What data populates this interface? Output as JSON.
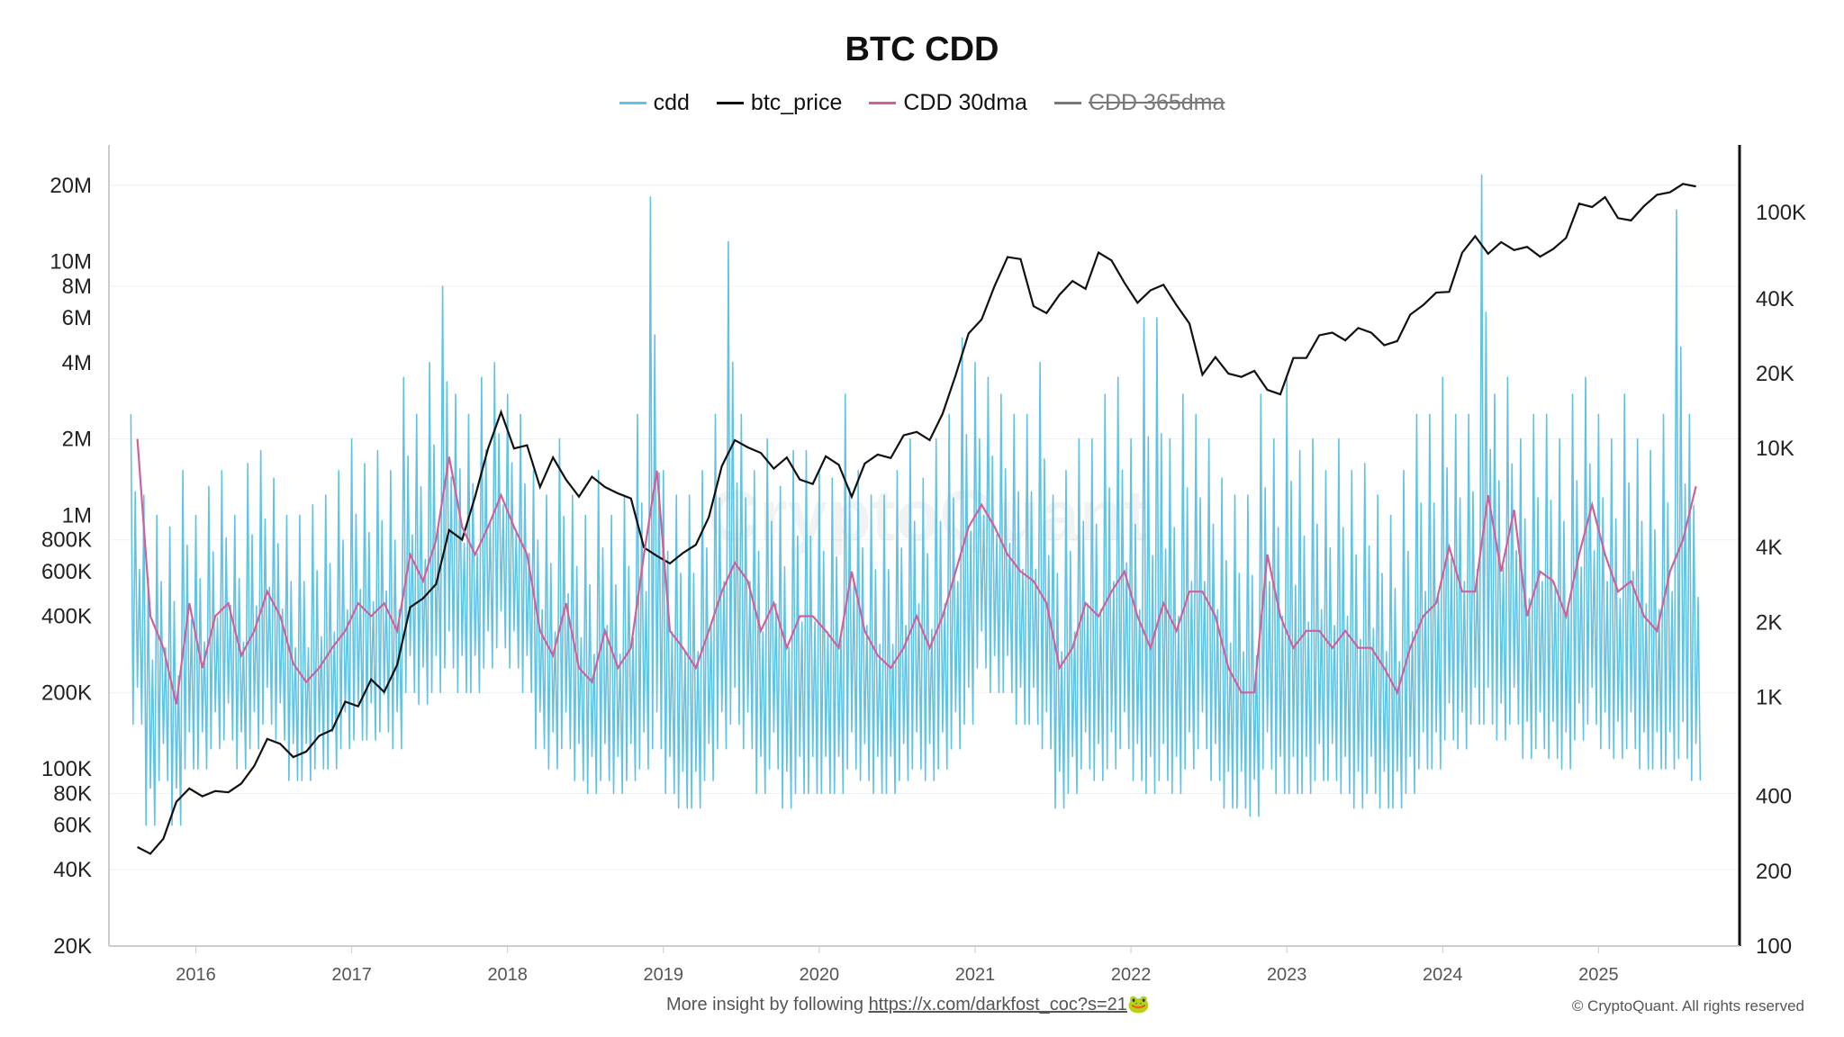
{
  "chart_data": {
    "type": "line",
    "title": "BTC CDD",
    "legend_position": "top",
    "grid": true,
    "x_ticks": [
      "2016",
      "2017",
      "2018",
      "2019",
      "2020",
      "2021",
      "2022",
      "2023",
      "2024",
      "2025"
    ],
    "left_axis": {
      "scale": "log",
      "range": [
        20000,
        28000000
      ],
      "ticks": [
        "20M",
        "10M",
        "8M",
        "6M",
        "4M",
        "2M",
        "1M",
        "800K",
        "600K",
        "400K",
        "200K",
        "100K",
        "80K",
        "60K",
        "40K",
        "20K"
      ],
      "tick_values": [
        20000000,
        10000000,
        8000000,
        6000000,
        4000000,
        2000000,
        1000000,
        800000,
        600000,
        400000,
        200000,
        100000,
        80000,
        60000,
        40000,
        20000
      ]
    },
    "right_axis": {
      "scale": "log",
      "range": [
        100,
        160000
      ],
      "ticks": [
        "100K",
        "40K",
        "20K",
        "10K",
        "4K",
        "2K",
        "1K",
        "400",
        "200",
        "100"
      ],
      "tick_values": [
        100000,
        40000,
        20000,
        10000,
        4000,
        2000,
        1000,
        400,
        200,
        100
      ]
    },
    "months": [
      "2015-08",
      "2015-09",
      "2015-10",
      "2015-11",
      "2015-12",
      "2016-01",
      "2016-02",
      "2016-03",
      "2016-04",
      "2016-05",
      "2016-06",
      "2016-07",
      "2016-08",
      "2016-09",
      "2016-10",
      "2016-11",
      "2016-12",
      "2017-01",
      "2017-02",
      "2017-03",
      "2017-04",
      "2017-05",
      "2017-06",
      "2017-07",
      "2017-08",
      "2017-09",
      "2017-10",
      "2017-11",
      "2017-12",
      "2018-01",
      "2018-02",
      "2018-03",
      "2018-04",
      "2018-05",
      "2018-06",
      "2018-07",
      "2018-08",
      "2018-09",
      "2018-10",
      "2018-11",
      "2018-12",
      "2019-01",
      "2019-02",
      "2019-03",
      "2019-04",
      "2019-05",
      "2019-06",
      "2019-07",
      "2019-08",
      "2019-09",
      "2019-10",
      "2019-11",
      "2019-12",
      "2020-01",
      "2020-02",
      "2020-03",
      "2020-04",
      "2020-05",
      "2020-06",
      "2020-07",
      "2020-08",
      "2020-09",
      "2020-10",
      "2020-11",
      "2020-12",
      "2021-01",
      "2021-02",
      "2021-03",
      "2021-04",
      "2021-05",
      "2021-06",
      "2021-07",
      "2021-08",
      "2021-09",
      "2021-10",
      "2021-11",
      "2021-12",
      "2022-01",
      "2022-02",
      "2022-03",
      "2022-04",
      "2022-05",
      "2022-06",
      "2022-07",
      "2022-08",
      "2022-09",
      "2022-10",
      "2022-11",
      "2022-12",
      "2023-01",
      "2023-02",
      "2023-03",
      "2023-04",
      "2023-05",
      "2023-06",
      "2023-07",
      "2023-08",
      "2023-09",
      "2023-10",
      "2023-11",
      "2023-12",
      "2024-01",
      "2024-02",
      "2024-03",
      "2024-04",
      "2024-05",
      "2024-06",
      "2024-07",
      "2024-08",
      "2024-09",
      "2024-10",
      "2024-11",
      "2024-12",
      "2025-01",
      "2025-02",
      "2025-03",
      "2025-04",
      "2025-05",
      "2025-06",
      "2025-07",
      "2025-08"
    ],
    "series": [
      {
        "name": "cdd",
        "axis": "left",
        "color": "#5fc3e4",
        "monthly_high": [
          2500000,
          1200000,
          1000000,
          900000,
          1500000,
          1000000,
          1300000,
          1500000,
          1000000,
          1600000,
          1800000,
          1400000,
          1000000,
          1000000,
          1100000,
          1200000,
          1500000,
          2000000,
          1600000,
          1800000,
          1500000,
          3500000,
          2500000,
          4000000,
          8000000,
          3000000,
          2500000,
          3500000,
          4000000,
          3000000,
          2500000,
          1500000,
          1200000,
          2000000,
          1200000,
          1000000,
          1500000,
          1000000,
          1200000,
          2500000,
          18000000,
          1500000,
          1200000,
          1200000,
          1500000,
          2500000,
          12000000,
          2500000,
          1500000,
          2000000,
          1300000,
          1800000,
          1800000,
          1500000,
          1400000,
          3000000,
          1500000,
          1200000,
          1200000,
          1500000,
          2000000,
          1400000,
          2000000,
          2500000,
          5000000,
          4000000,
          3500000,
          3000000,
          2500000,
          2500000,
          4000000,
          1200000,
          1500000,
          2000000,
          2000000,
          3000000,
          3500000,
          2000000,
          6000000,
          6000000,
          2000000,
          3000000,
          2500000,
          2000000,
          1400000,
          1200000,
          1200000,
          3000000,
          2000000,
          3500000,
          1800000,
          2000000,
          1500000,
          2000000,
          1500000,
          1600000,
          1200000,
          1000000,
          1500000,
          2500000,
          2500000,
          3500000,
          2500000,
          2500000,
          22000000,
          3000000,
          3500000,
          2000000,
          2500000,
          2500000,
          2000000,
          3000000,
          3500000,
          2500000,
          2000000,
          3000000,
          2000000,
          1800000,
          2500000,
          16000000,
          2500000
        ],
        "monthly_low": [
          150000,
          60000,
          90000,
          60000,
          100000,
          100000,
          120000,
          130000,
          100000,
          120000,
          150000,
          130000,
          90000,
          90000,
          100000,
          100000,
          120000,
          130000,
          130000,
          140000,
          120000,
          200000,
          180000,
          200000,
          250000,
          200000,
          200000,
          250000,
          300000,
          250000,
          200000,
          120000,
          100000,
          120000,
          90000,
          80000,
          90000,
          80000,
          90000,
          100000,
          120000,
          80000,
          70000,
          70000,
          90000,
          120000,
          150000,
          120000,
          80000,
          100000,
          70000,
          80000,
          80000,
          80000,
          80000,
          100000,
          90000,
          80000,
          80000,
          90000,
          100000,
          90000,
          100000,
          120000,
          150000,
          250000,
          200000,
          200000,
          150000,
          150000,
          120000,
          70000,
          80000,
          100000,
          90000,
          100000,
          120000,
          90000,
          80000,
          90000,
          80000,
          100000,
          120000,
          90000,
          70000,
          70000,
          65000,
          100000,
          80000,
          80000,
          80000,
          90000,
          90000,
          80000,
          70000,
          80000,
          70000,
          70000,
          80000,
          100000,
          100000,
          130000,
          120000,
          150000,
          150000,
          130000,
          150000,
          110000,
          120000,
          110000,
          100000,
          130000,
          150000,
          120000,
          110000,
          120000,
          100000,
          100000,
          100000,
          110000,
          90000
        ]
      },
      {
        "name": "btc_price",
        "axis": "right",
        "color": "#111111",
        "values": [
          250,
          235,
          270,
          380,
          430,
          400,
          420,
          415,
          450,
          530,
          680,
          650,
          575,
          605,
          700,
          740,
          960,
          920,
          1180,
          1050,
          1350,
          2300,
          2500,
          2850,
          4700,
          4300,
          6400,
          10000,
          14000,
          10000,
          10300,
          7000,
          9200,
          7500,
          6400,
          7700,
          7000,
          6600,
          6300,
          4000,
          3700,
          3450,
          3800,
          4100,
          5300,
          8500,
          10800,
          10100,
          9600,
          8300,
          9200,
          7500,
          7200,
          9300,
          8600,
          6400,
          8700,
          9450,
          9150,
          11300,
          11650,
          10800,
          13800,
          19700,
          29000,
          33000,
          45000,
          58800,
          57700,
          37300,
          35000,
          41500,
          47100,
          43800,
          61300,
          57000,
          46300,
          38500,
          43200,
          45500,
          37700,
          31800,
          19800,
          23300,
          20000,
          19400,
          20500,
          17200,
          16500,
          23100,
          23100,
          28500,
          29200,
          27200,
          30500,
          29200,
          26000,
          27000,
          34500,
          37700,
          42300,
          42600,
          61200,
          71300,
          60600,
          67500,
          62700,
          64600,
          59000,
          63300,
          70200,
          96400,
          93400,
          102400,
          84300,
          82500,
          94200,
          104600,
          107100,
          115700,
          113000
        ]
      },
      {
        "name": "CDD 30dma",
        "axis": "left",
        "color": "#d0609a",
        "values": [
          2000000,
          400000,
          300000,
          180000,
          450000,
          250000,
          400000,
          450000,
          280000,
          350000,
          500000,
          400000,
          260000,
          220000,
          250000,
          300000,
          350000,
          450000,
          400000,
          450000,
          350000,
          700000,
          550000,
          800000,
          1700000,
          900000,
          700000,
          900000,
          1200000,
          900000,
          700000,
          350000,
          280000,
          450000,
          250000,
          220000,
          350000,
          250000,
          300000,
          700000,
          1500000,
          350000,
          300000,
          250000,
          350000,
          500000,
          650000,
          550000,
          350000,
          450000,
          300000,
          400000,
          400000,
          350000,
          300000,
          600000,
          350000,
          280000,
          250000,
          300000,
          400000,
          300000,
          400000,
          600000,
          900000,
          1100000,
          900000,
          700000,
          600000,
          550000,
          450000,
          250000,
          300000,
          450000,
          400000,
          500000,
          600000,
          400000,
          300000,
          450000,
          350000,
          500000,
          500000,
          400000,
          250000,
          200000,
          200000,
          700000,
          400000,
          300000,
          350000,
          350000,
          300000,
          350000,
          300000,
          300000,
          250000,
          200000,
          300000,
          400000,
          450000,
          750000,
          500000,
          500000,
          1200000,
          600000,
          1050000,
          400000,
          600000,
          550000,
          400000,
          700000,
          1100000,
          700000,
          500000,
          550000,
          400000,
          350000,
          600000,
          800000,
          1300000
        ]
      },
      {
        "name": "CDD 365dma",
        "axis": "left",
        "color": "#777777",
        "hidden": true
      }
    ]
  },
  "watermark": "CryptoQuant",
  "footer": {
    "prefix": "More insight by following",
    "link": "https://x.com/darkfost_coc?s=21",
    "emoji": "🐸"
  },
  "copyright": "© CryptoQuant. All rights reserved"
}
